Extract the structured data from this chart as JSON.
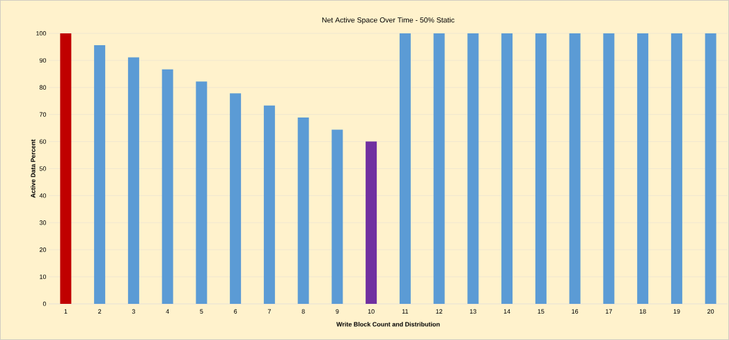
{
  "chart_data": {
    "type": "bar",
    "title": "Net Active Space Over Time - 50% Static",
    "xlabel": "Write Block Count and Distribution",
    "ylabel": "Active Data Percent",
    "categories": [
      "1",
      "2",
      "3",
      "4",
      "5",
      "6",
      "7",
      "8",
      "9",
      "10",
      "11",
      "12",
      "13",
      "14",
      "15",
      "16",
      "17",
      "18",
      "19",
      "20"
    ],
    "values": [
      100,
      95.6,
      91.1,
      86.7,
      82.2,
      77.8,
      73.3,
      68.9,
      64.4,
      60,
      100,
      100,
      100,
      100,
      100,
      100,
      100,
      100,
      100,
      100
    ],
    "colors": [
      "#c00000",
      "#5b9bd5",
      "#5b9bd5",
      "#5b9bd5",
      "#5b9bd5",
      "#5b9bd5",
      "#5b9bd5",
      "#5b9bd5",
      "#5b9bd5",
      "#7030a0",
      "#5b9bd5",
      "#5b9bd5",
      "#5b9bd5",
      "#5b9bd5",
      "#5b9bd5",
      "#5b9bd5",
      "#5b9bd5",
      "#5b9bd5",
      "#5b9bd5",
      "#5b9bd5"
    ],
    "ylim": [
      0,
      100
    ],
    "yticks": [
      0,
      10,
      20,
      30,
      40,
      50,
      60,
      70,
      80,
      90,
      100
    ],
    "grid": "y"
  }
}
